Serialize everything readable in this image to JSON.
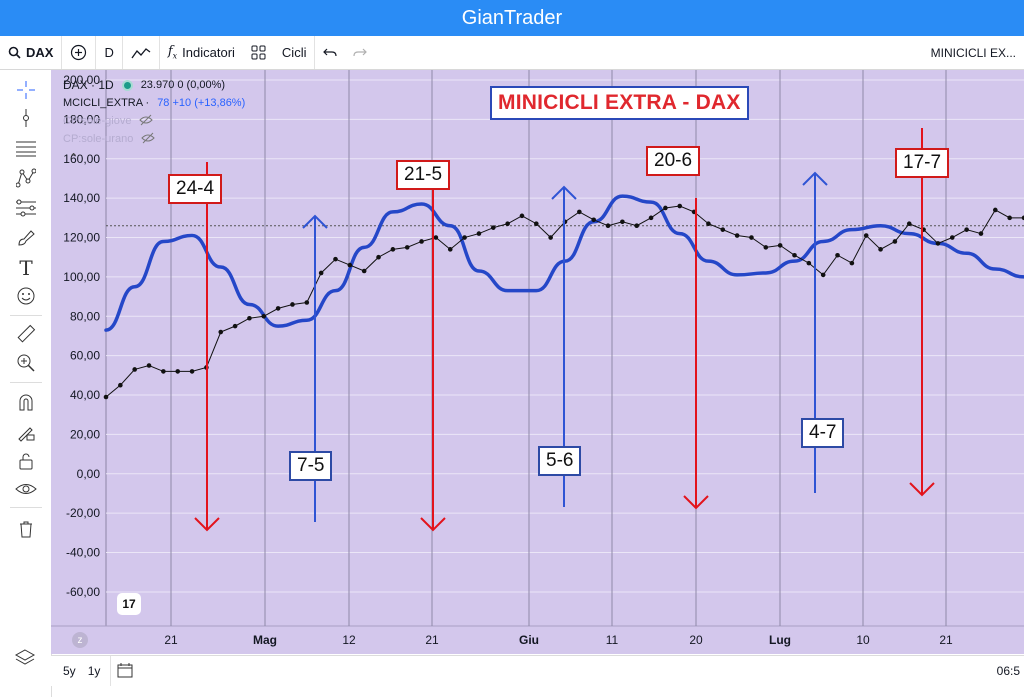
{
  "app_title": "GianTrader",
  "toolbar": {
    "symbol": "DAX",
    "interval": "D",
    "indicators_label": "Indicatori",
    "cycles_label": "Cicli",
    "right_label": "MINICICLI EX..."
  },
  "legend": {
    "symbol_line": "DAX · 1D",
    "price_line": "23.970  0 (0,00%)",
    "indicator_name": "MCICLI_EXTRA ·",
    "indicator_value": "78 +10 (+13,86%)",
    "cp1": "CP:sole-giove",
    "cp2": "CP:sole-urano"
  },
  "chart_title": "MINICICLI EXTRA - DAX",
  "annotations": {
    "red": [
      {
        "label": "24-4",
        "date": "24-4"
      },
      {
        "label": "21-5",
        "date": "21-5"
      },
      {
        "label": "20-6",
        "date": "20-6"
      },
      {
        "label": "17-7",
        "date": "17-7"
      }
    ],
    "blue": [
      {
        "label": "7-5",
        "date": "7-5"
      },
      {
        "label": "5-6",
        "date": "5-6"
      },
      {
        "label": "4-7",
        "date": "4-7"
      }
    ]
  },
  "colors": {
    "background": "#d3c7ec",
    "title_bar": "#2a8cf5",
    "cycle_line": "#2547c8",
    "red_arrow": "#e3131c",
    "blue_arrow": "#2f54d4"
  },
  "chart_data": {
    "type": "line",
    "title": "MINICICLI EXTRA - DAX",
    "ylim": [
      -70,
      200
    ],
    "y_ticks": [
      "200,00",
      "180,00",
      "160,00",
      "140,00",
      "120,00",
      "100,00",
      "80,00",
      "60,00",
      "40,00",
      "20,00",
      "0,00",
      "-20,00",
      "-40,00",
      "-60,00"
    ],
    "x_ticks": [
      "21",
      "Mag",
      "12",
      "21",
      "Giu",
      "11",
      "20",
      "Lug",
      "10",
      "21"
    ],
    "horizontal_reference": 126,
    "series": [
      {
        "name": "MCICLI_EXTRA",
        "x": [
          0,
          2,
          4,
          6,
          8,
          10,
          12,
          14,
          16,
          18,
          20,
          22,
          24,
          26,
          28,
          30,
          32,
          34,
          36,
          38,
          40,
          42,
          44,
          46,
          48,
          50,
          52,
          54,
          56,
          58,
          60,
          62,
          64,
          66,
          68,
          70,
          72,
          74,
          76,
          78,
          80,
          82,
          84,
          86,
          88,
          90,
          92,
          94,
          96,
          98,
          100,
          102,
          104,
          106,
          108,
          110,
          112,
          114,
          116,
          118,
          120,
          122,
          124,
          126,
          128
        ],
        "y": [
          39,
          45,
          53,
          55,
          52,
          52,
          52,
          54,
          72,
          75,
          79,
          80,
          84,
          86,
          87,
          102,
          109,
          106,
          103,
          110,
          114,
          115,
          118,
          120,
          114,
          120,
          122,
          125,
          127,
          131,
          127,
          120,
          128,
          133,
          129,
          126,
          128,
          126,
          130,
          135,
          136,
          133,
          127,
          124,
          121,
          120,
          115,
          116,
          111,
          107,
          101,
          111,
          107,
          121,
          114,
          118,
          127,
          124,
          117,
          120,
          124,
          122,
          134,
          130,
          130
        ]
      },
      {
        "name": "cycle",
        "x": [
          0,
          4,
          8,
          12,
          16,
          20,
          24,
          28,
          32,
          36,
          40,
          44,
          48,
          52,
          56,
          60,
          64,
          68,
          72,
          76,
          80,
          84,
          88,
          92,
          96,
          100,
          104,
          108,
          112,
          116,
          120,
          124,
          128
        ],
        "y": [
          73,
          95,
          118,
          121,
          105,
          86,
          75,
          78,
          93,
          115,
          133,
          137,
          126,
          103,
          93,
          93,
          108,
          128,
          141,
          138,
          122,
          108,
          101,
          102,
          108,
          118,
          124,
          126,
          122,
          117,
          112,
          104,
          100
        ]
      }
    ]
  }
}
